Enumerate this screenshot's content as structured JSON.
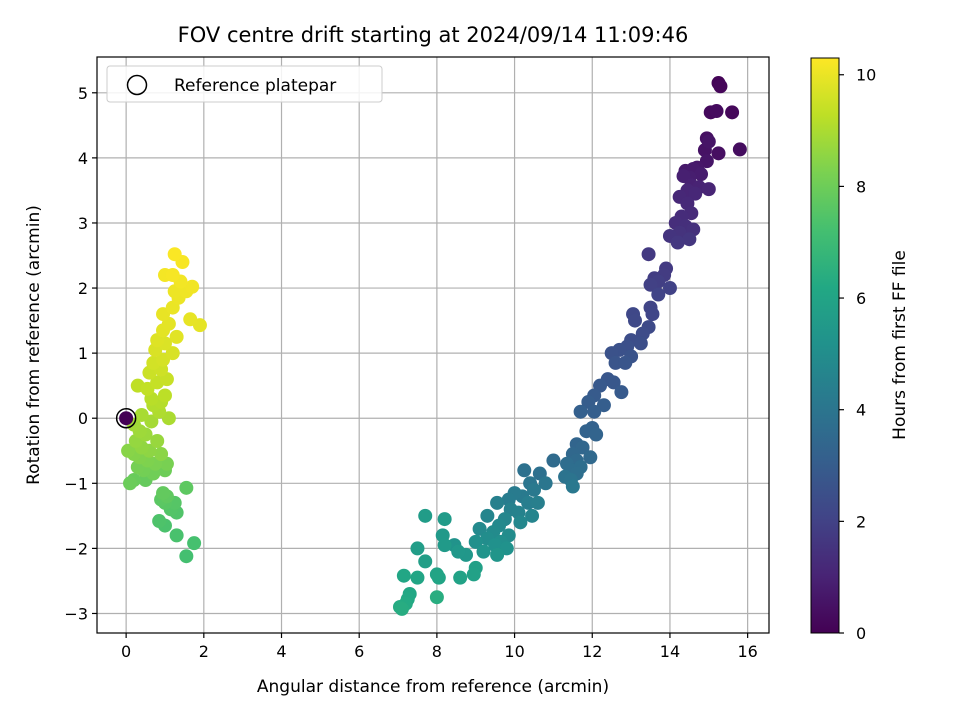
{
  "chart_data": {
    "type": "scatter",
    "title": "FOV centre drift starting at 2024/09/14 11:09:46",
    "xlabel": "Angular distance from reference (arcmin)",
    "ylabel": "Rotation from reference (arcmin)",
    "xlim": [
      -0.75,
      16.55
    ],
    "ylim": [
      -3.3,
      5.55
    ],
    "xticks": [
      0,
      2,
      4,
      6,
      8,
      10,
      12,
      14,
      16
    ],
    "yticks": [
      -3,
      -2,
      -1,
      0,
      1,
      2,
      3,
      4,
      5
    ],
    "grid": true,
    "legend": {
      "placement": "top-left",
      "entries": [
        {
          "label": "Reference platepar",
          "marker": "hollow-circle"
        }
      ]
    },
    "reference_point": {
      "x": 0,
      "y": 0
    },
    "colorbar": {
      "label": "Hours from first FF file",
      "min": 0,
      "max": 10.3,
      "ticks": [
        0,
        2,
        4,
        6,
        8,
        10
      ],
      "colormap": "viridis"
    },
    "points": [
      {
        "x": 15.25,
        "y": 5.15,
        "c": 0.1
      },
      {
        "x": 15.3,
        "y": 5.1,
        "c": 0.15
      },
      {
        "x": 15.6,
        "y": 4.7,
        "c": 0.2
      },
      {
        "x": 15.05,
        "y": 4.7,
        "c": 0.25
      },
      {
        "x": 15.2,
        "y": 4.72,
        "c": 0.3
      },
      {
        "x": 15.8,
        "y": 4.13,
        "c": 0.35
      },
      {
        "x": 15.25,
        "y": 4.07,
        "c": 0.4
      },
      {
        "x": 14.95,
        "y": 4.3,
        "c": 0.45
      },
      {
        "x": 14.9,
        "y": 4.12,
        "c": 0.5
      },
      {
        "x": 15.0,
        "y": 4.25,
        "c": 0.55
      },
      {
        "x": 14.95,
        "y": 3.95,
        "c": 0.6
      },
      {
        "x": 14.7,
        "y": 3.85,
        "c": 0.65
      },
      {
        "x": 14.4,
        "y": 3.8,
        "c": 0.7
      },
      {
        "x": 14.6,
        "y": 3.83,
        "c": 0.75
      },
      {
        "x": 14.8,
        "y": 3.75,
        "c": 0.8
      },
      {
        "x": 14.5,
        "y": 3.7,
        "c": 0.85
      },
      {
        "x": 14.35,
        "y": 3.72,
        "c": 0.9
      },
      {
        "x": 14.55,
        "y": 3.58,
        "c": 0.95
      },
      {
        "x": 14.75,
        "y": 3.55,
        "c": 1.0
      },
      {
        "x": 15.0,
        "y": 3.52,
        "c": 1.05
      },
      {
        "x": 14.45,
        "y": 3.5,
        "c": 1.1
      },
      {
        "x": 14.65,
        "y": 3.45,
        "c": 1.12
      },
      {
        "x": 14.25,
        "y": 3.4,
        "c": 1.15
      },
      {
        "x": 14.45,
        "y": 3.3,
        "c": 1.2
      },
      {
        "x": 14.55,
        "y": 3.15,
        "c": 1.25
      },
      {
        "x": 14.3,
        "y": 3.1,
        "c": 1.3
      },
      {
        "x": 14.15,
        "y": 3.0,
        "c": 1.35
      },
      {
        "x": 14.4,
        "y": 2.95,
        "c": 1.4
      },
      {
        "x": 14.6,
        "y": 2.9,
        "c": 1.45
      },
      {
        "x": 14.25,
        "y": 2.85,
        "c": 1.5
      },
      {
        "x": 14.0,
        "y": 2.8,
        "c": 1.55
      },
      {
        "x": 14.5,
        "y": 2.75,
        "c": 1.6
      },
      {
        "x": 14.2,
        "y": 2.7,
        "c": 1.65
      },
      {
        "x": 13.45,
        "y": 2.52,
        "c": 1.7
      },
      {
        "x": 13.9,
        "y": 2.3,
        "c": 1.75
      },
      {
        "x": 13.85,
        "y": 2.2,
        "c": 1.8
      },
      {
        "x": 13.6,
        "y": 2.15,
        "c": 1.85
      },
      {
        "x": 13.7,
        "y": 2.1,
        "c": 1.9
      },
      {
        "x": 13.5,
        "y": 2.05,
        "c": 1.95
      },
      {
        "x": 14.0,
        "y": 2.0,
        "c": 2.0
      },
      {
        "x": 13.7,
        "y": 1.9,
        "c": 2.05
      },
      {
        "x": 13.5,
        "y": 1.7,
        "c": 2.1
      },
      {
        "x": 13.55,
        "y": 1.6,
        "c": 2.15
      },
      {
        "x": 13.05,
        "y": 1.6,
        "c": 2.2
      },
      {
        "x": 13.1,
        "y": 1.5,
        "c": 2.25
      },
      {
        "x": 13.45,
        "y": 1.4,
        "c": 2.3
      },
      {
        "x": 13.3,
        "y": 1.3,
        "c": 2.35
      },
      {
        "x": 13.0,
        "y": 1.2,
        "c": 2.4
      },
      {
        "x": 13.25,
        "y": 1.15,
        "c": 2.45
      },
      {
        "x": 12.9,
        "y": 1.1,
        "c": 2.5
      },
      {
        "x": 12.7,
        "y": 1.05,
        "c": 2.55
      },
      {
        "x": 12.5,
        "y": 1.0,
        "c": 2.6
      },
      {
        "x": 13.0,
        "y": 0.95,
        "c": 2.65
      },
      {
        "x": 12.6,
        "y": 0.85,
        "c": 2.7
      },
      {
        "x": 12.85,
        "y": 0.85,
        "c": 2.72
      },
      {
        "x": 12.4,
        "y": 0.6,
        "c": 2.75
      },
      {
        "x": 12.55,
        "y": 0.55,
        "c": 2.8
      },
      {
        "x": 12.2,
        "y": 0.5,
        "c": 2.85
      },
      {
        "x": 12.75,
        "y": 0.4,
        "c": 2.9
      },
      {
        "x": 12.05,
        "y": 0.35,
        "c": 2.95
      },
      {
        "x": 11.9,
        "y": 0.25,
        "c": 3.0
      },
      {
        "x": 12.3,
        "y": 0.2,
        "c": 3.05
      },
      {
        "x": 12.05,
        "y": 0.1,
        "c": 3.1
      },
      {
        "x": 11.7,
        "y": 0.1,
        "c": 3.15
      },
      {
        "x": 12.0,
        "y": -0.15,
        "c": 3.2
      },
      {
        "x": 11.85,
        "y": -0.2,
        "c": 3.25
      },
      {
        "x": 12.1,
        "y": -0.25,
        "c": 3.3
      },
      {
        "x": 11.6,
        "y": -0.4,
        "c": 3.35
      },
      {
        "x": 11.75,
        "y": -0.45,
        "c": 3.4
      },
      {
        "x": 11.5,
        "y": -0.55,
        "c": 3.45
      },
      {
        "x": 11.95,
        "y": -0.6,
        "c": 3.5
      },
      {
        "x": 11.6,
        "y": -0.65,
        "c": 3.55
      },
      {
        "x": 11.0,
        "y": -0.65,
        "c": 3.6
      },
      {
        "x": 11.35,
        "y": -0.7,
        "c": 3.65
      },
      {
        "x": 11.7,
        "y": -0.75,
        "c": 3.7
      },
      {
        "x": 11.45,
        "y": -0.8,
        "c": 3.72
      },
      {
        "x": 11.6,
        "y": -0.85,
        "c": 3.75
      },
      {
        "x": 10.65,
        "y": -0.85,
        "c": 3.8
      },
      {
        "x": 10.25,
        "y": -0.8,
        "c": 3.85
      },
      {
        "x": 11.3,
        "y": -0.9,
        "c": 3.9
      },
      {
        "x": 11.45,
        "y": -0.95,
        "c": 3.95
      },
      {
        "x": 10.4,
        "y": -1.0,
        "c": 4.0
      },
      {
        "x": 10.8,
        "y": -1.0,
        "c": 4.05
      },
      {
        "x": 11.5,
        "y": -1.05,
        "c": 4.1
      },
      {
        "x": 10.5,
        "y": -1.1,
        "c": 4.15
      },
      {
        "x": 10.2,
        "y": -1.2,
        "c": 4.2
      },
      {
        "x": 10.0,
        "y": -1.15,
        "c": 4.25
      },
      {
        "x": 9.85,
        "y": -1.25,
        "c": 4.3
      },
      {
        "x": 10.35,
        "y": -1.3,
        "c": 4.35
      },
      {
        "x": 10.6,
        "y": -1.3,
        "c": 4.4
      },
      {
        "x": 9.55,
        "y": -1.3,
        "c": 4.45
      },
      {
        "x": 9.9,
        "y": -1.4,
        "c": 4.5
      },
      {
        "x": 10.1,
        "y": -1.45,
        "c": 4.55
      },
      {
        "x": 10.45,
        "y": -1.5,
        "c": 4.6
      },
      {
        "x": 9.3,
        "y": -1.5,
        "c": 4.65
      },
      {
        "x": 9.75,
        "y": -1.55,
        "c": 4.7
      },
      {
        "x": 10.15,
        "y": -1.6,
        "c": 4.75
      },
      {
        "x": 9.6,
        "y": -1.65,
        "c": 4.8
      },
      {
        "x": 9.1,
        "y": -1.7,
        "c": 4.85
      },
      {
        "x": 9.45,
        "y": -1.75,
        "c": 4.9
      },
      {
        "x": 9.85,
        "y": -1.8,
        "c": 4.95
      },
      {
        "x": 9.3,
        "y": -1.85,
        "c": 5.0
      },
      {
        "x": 9.65,
        "y": -1.9,
        "c": 5.05
      },
      {
        "x": 9.0,
        "y": -1.9,
        "c": 5.1
      },
      {
        "x": 9.5,
        "y": -1.95,
        "c": 5.15
      },
      {
        "x": 9.8,
        "y": -2.0,
        "c": 5.2
      },
      {
        "x": 8.45,
        "y": -1.95,
        "c": 5.25
      },
      {
        "x": 9.2,
        "y": -2.05,
        "c": 5.3
      },
      {
        "x": 9.55,
        "y": -2.1,
        "c": 5.35
      },
      {
        "x": 8.75,
        "y": -2.1,
        "c": 5.4
      },
      {
        "x": 8.55,
        "y": -2.05,
        "c": 5.45
      },
      {
        "x": 8.15,
        "y": -1.8,
        "c": 5.5
      },
      {
        "x": 8.2,
        "y": -1.95,
        "c": 5.55
      },
      {
        "x": 8.2,
        "y": -1.55,
        "c": 5.6
      },
      {
        "x": 7.7,
        "y": -1.5,
        "c": 5.65
      },
      {
        "x": 7.5,
        "y": -2.0,
        "c": 5.7
      },
      {
        "x": 7.7,
        "y": -2.2,
        "c": 5.75
      },
      {
        "x": 9.0,
        "y": -2.3,
        "c": 5.8
      },
      {
        "x": 8.95,
        "y": -2.4,
        "c": 5.85
      },
      {
        "x": 8.6,
        "y": -2.45,
        "c": 5.9
      },
      {
        "x": 8.0,
        "y": -2.4,
        "c": 5.95
      },
      {
        "x": 8.05,
        "y": -2.45,
        "c": 6.0
      },
      {
        "x": 7.5,
        "y": -2.45,
        "c": 6.05
      },
      {
        "x": 7.15,
        "y": -2.42,
        "c": 6.1
      },
      {
        "x": 7.3,
        "y": -2.7,
        "c": 6.15
      },
      {
        "x": 7.25,
        "y": -2.78,
        "c": 6.2
      },
      {
        "x": 7.2,
        "y": -2.85,
        "c": 6.25
      },
      {
        "x": 7.05,
        "y": -2.9,
        "c": 6.3
      },
      {
        "x": 7.1,
        "y": -2.93,
        "c": 6.35
      },
      {
        "x": 8.0,
        "y": -2.75,
        "c": 6.4
      },
      {
        "x": 1.55,
        "y": -2.12,
        "c": 7.2
      },
      {
        "x": 1.75,
        "y": -1.92,
        "c": 7.25
      },
      {
        "x": 1.3,
        "y": -1.8,
        "c": 7.3
      },
      {
        "x": 1.0,
        "y": -1.65,
        "c": 7.35
      },
      {
        "x": 0.85,
        "y": -1.58,
        "c": 7.4
      },
      {
        "x": 1.3,
        "y": -1.45,
        "c": 7.45
      },
      {
        "x": 1.15,
        "y": -1.4,
        "c": 7.5
      },
      {
        "x": 1.25,
        "y": -1.3,
        "c": 7.55
      },
      {
        "x": 1.0,
        "y": -1.3,
        "c": 7.6
      },
      {
        "x": 0.9,
        "y": -1.25,
        "c": 7.65
      },
      {
        "x": 1.55,
        "y": -1.07,
        "c": 7.7
      },
      {
        "x": 1.05,
        "y": -1.2,
        "c": 7.75
      },
      {
        "x": 0.95,
        "y": -1.15,
        "c": 7.8
      },
      {
        "x": 0.5,
        "y": -0.95,
        "c": 7.85
      },
      {
        "x": 0.2,
        "y": -0.95,
        "c": 7.9
      },
      {
        "x": 0.1,
        "y": -1.0,
        "c": 7.95
      },
      {
        "x": 1.0,
        "y": -0.8,
        "c": 8.0
      },
      {
        "x": 0.7,
        "y": -0.85,
        "c": 8.05
      },
      {
        "x": 0.45,
        "y": -0.8,
        "c": 8.1
      },
      {
        "x": 0.3,
        "y": -0.75,
        "c": 8.15
      },
      {
        "x": 1.05,
        "y": -0.7,
        "c": 8.2
      },
      {
        "x": 0.75,
        "y": -0.7,
        "c": 8.25
      },
      {
        "x": 0.55,
        "y": -0.65,
        "c": 8.3
      },
      {
        "x": 0.35,
        "y": -0.6,
        "c": 8.35
      },
      {
        "x": 0.2,
        "y": -0.55,
        "c": 8.4
      },
      {
        "x": 0.05,
        "y": -0.5,
        "c": 8.45
      },
      {
        "x": 0.9,
        "y": -0.55,
        "c": 8.5
      },
      {
        "x": 0.6,
        "y": -0.5,
        "c": 8.55
      },
      {
        "x": 0.4,
        "y": -0.45,
        "c": 8.6
      },
      {
        "x": 0.25,
        "y": -0.35,
        "c": 8.65
      },
      {
        "x": 0.8,
        "y": -0.35,
        "c": 8.7
      },
      {
        "x": 0.5,
        "y": -0.25,
        "c": 8.75
      },
      {
        "x": 0.35,
        "y": -0.2,
        "c": 8.8
      },
      {
        "x": 0.2,
        "y": -0.1,
        "c": 8.85
      },
      {
        "x": 0.65,
        "y": -0.05,
        "c": 8.9
      },
      {
        "x": 0.4,
        "y": 0.05,
        "c": 8.95
      },
      {
        "x": 1.1,
        "y": 0.0,
        "c": 9.0
      },
      {
        "x": 0.85,
        "y": 0.1,
        "c": 9.05
      },
      {
        "x": 0.7,
        "y": 0.2,
        "c": 9.1
      },
      {
        "x": 0.9,
        "y": 0.25,
        "c": 9.15
      },
      {
        "x": 0.65,
        "y": 0.3,
        "c": 9.2
      },
      {
        "x": 1.0,
        "y": 0.35,
        "c": 9.25
      },
      {
        "x": 0.3,
        "y": 0.5,
        "c": 9.3
      },
      {
        "x": 0.55,
        "y": 0.45,
        "c": 9.35
      },
      {
        "x": 0.8,
        "y": 0.55,
        "c": 9.4
      },
      {
        "x": 1.05,
        "y": 0.6,
        "c": 9.45
      },
      {
        "x": 0.6,
        "y": 0.7,
        "c": 9.5
      },
      {
        "x": 0.9,
        "y": 0.75,
        "c": 9.55
      },
      {
        "x": 0.7,
        "y": 0.85,
        "c": 9.6
      },
      {
        "x": 0.95,
        "y": 0.9,
        "c": 9.65
      },
      {
        "x": 1.2,
        "y": 1.0,
        "c": 9.7
      },
      {
        "x": 0.75,
        "y": 1.05,
        "c": 9.72
      },
      {
        "x": 1.0,
        "y": 1.15,
        "c": 9.75
      },
      {
        "x": 0.8,
        "y": 1.2,
        "c": 9.8
      },
      {
        "x": 1.3,
        "y": 1.25,
        "c": 9.85
      },
      {
        "x": 0.95,
        "y": 1.35,
        "c": 9.88
      },
      {
        "x": 1.1,
        "y": 1.45,
        "c": 9.9
      },
      {
        "x": 1.9,
        "y": 1.43,
        "c": 9.92
      },
      {
        "x": 1.65,
        "y": 1.52,
        "c": 9.95
      },
      {
        "x": 0.95,
        "y": 1.6,
        "c": 9.97
      },
      {
        "x": 1.2,
        "y": 1.7,
        "c": 10.0
      },
      {
        "x": 1.35,
        "y": 1.85,
        "c": 10.02
      },
      {
        "x": 1.25,
        "y": 1.95,
        "c": 10.05
      },
      {
        "x": 1.55,
        "y": 1.95,
        "c": 10.07
      },
      {
        "x": 1.7,
        "y": 2.02,
        "c": 10.1
      },
      {
        "x": 1.4,
        "y": 2.1,
        "c": 10.12
      },
      {
        "x": 1.0,
        "y": 2.2,
        "c": 10.15
      },
      {
        "x": 1.2,
        "y": 2.2,
        "c": 10.18
      },
      {
        "x": 1.45,
        "y": 2.4,
        "c": 10.2
      },
      {
        "x": 1.25,
        "y": 2.52,
        "c": 10.25
      },
      {
        "x": 0.0,
        "y": 0.0,
        "c": 0.0
      }
    ]
  }
}
